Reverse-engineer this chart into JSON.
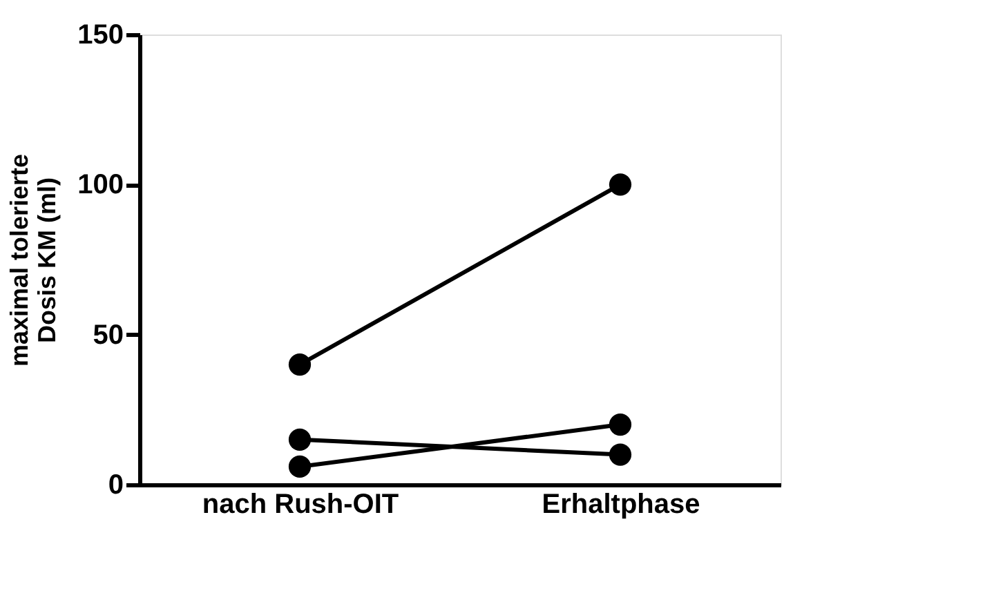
{
  "chart_data": {
    "type": "line",
    "ylabel": "maximal tolerierte\nDosis KM (ml)",
    "categories": [
      "nach Rush-OIT",
      "Erhaltphase"
    ],
    "series": [
      {
        "color": "#000000",
        "values": [
          40,
          100
        ]
      },
      {
        "color": "#000000",
        "values": [
          15,
          10
        ]
      },
      {
        "color": "#000000",
        "values": [
          6,
          20
        ]
      }
    ],
    "ylim": [
      0,
      150
    ],
    "yticks": [
      0,
      50,
      100,
      150
    ],
    "grid": false,
    "legend": false,
    "marker": "circle",
    "line_style": "solid"
  }
}
